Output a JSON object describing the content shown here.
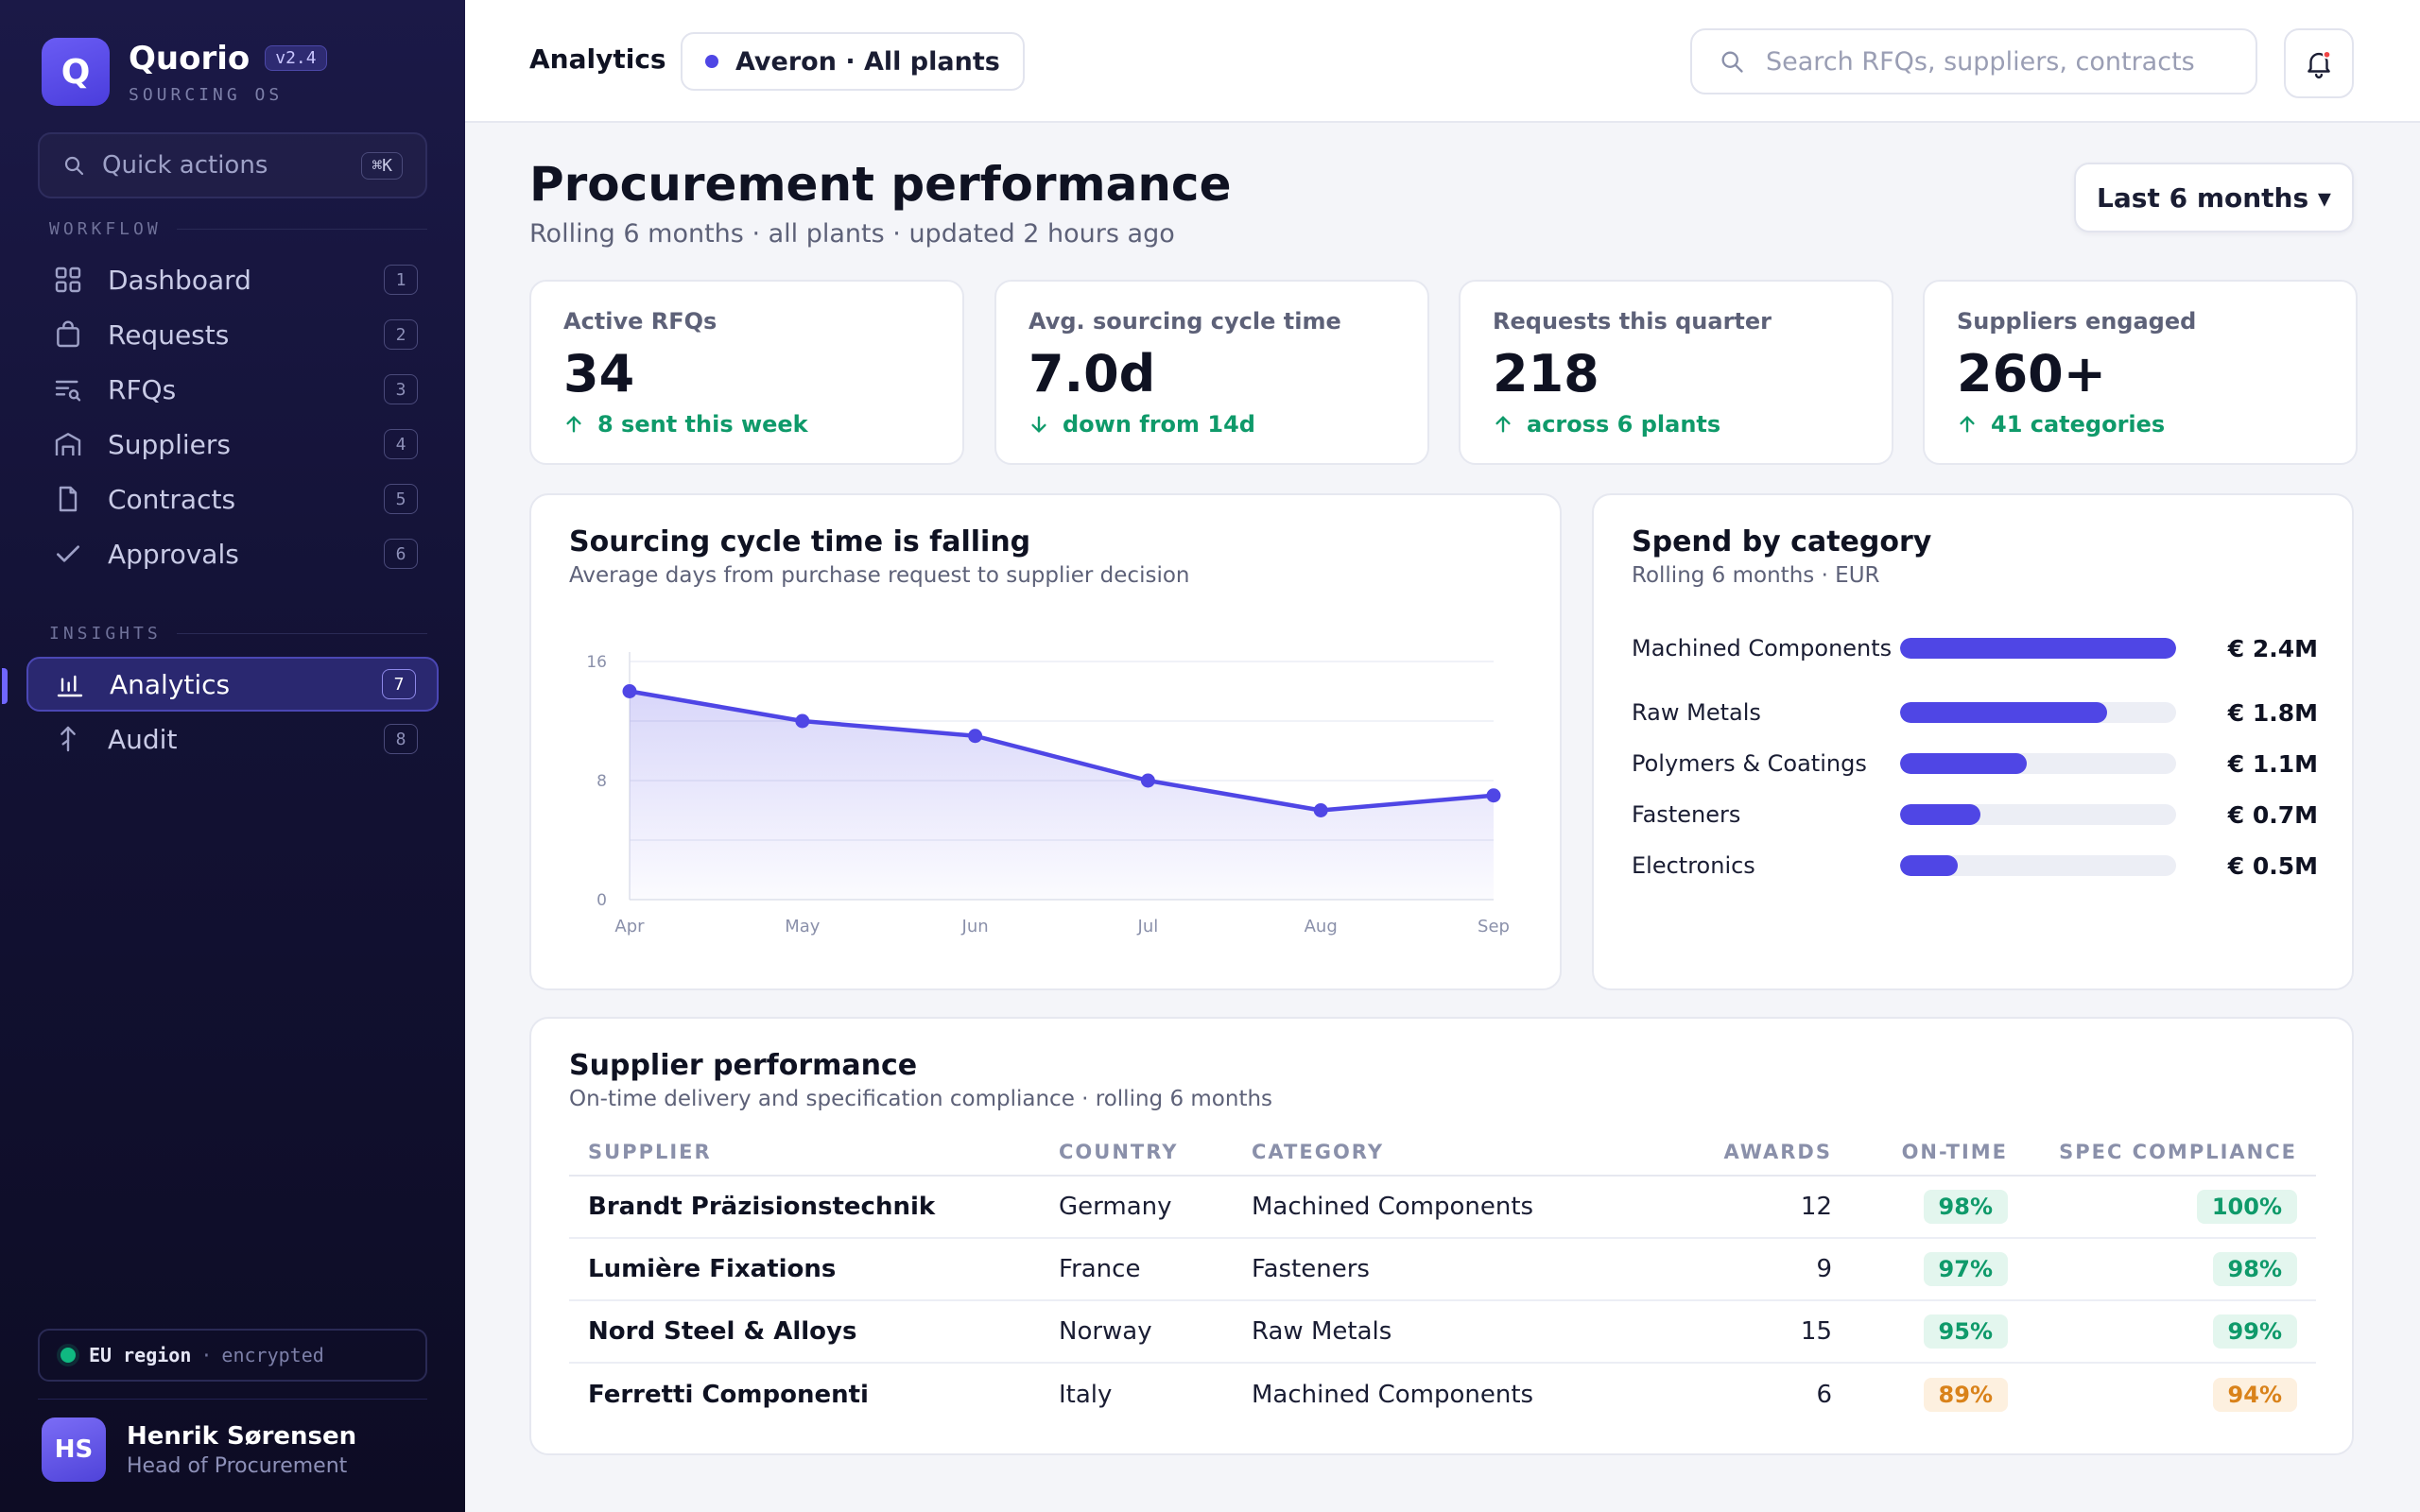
{
  "sidebar": {
    "brand": {
      "name": "Quorio",
      "version": "v2.4",
      "subtitle": "SOURCING OS",
      "logo_letter": "Q"
    },
    "quick_actions": {
      "label": "Quick actions",
      "shortcut": "⌘K"
    },
    "sections": {
      "workflow": "WORKFLOW",
      "insights": "INSIGHTS"
    },
    "workflow_items": [
      {
        "label": "Dashboard",
        "num": "1",
        "icon": "grid-icon"
      },
      {
        "label": "Requests",
        "num": "2",
        "icon": "bag-icon"
      },
      {
        "label": "RFQs",
        "num": "3",
        "icon": "list-search-icon"
      },
      {
        "label": "Suppliers",
        "num": "4",
        "icon": "warehouse-icon"
      },
      {
        "label": "Contracts",
        "num": "5",
        "icon": "document-icon"
      },
      {
        "label": "Approvals",
        "num": "6",
        "icon": "check-icon"
      }
    ],
    "insights_items": [
      {
        "label": "Analytics",
        "num": "7",
        "icon": "bar-chart-icon",
        "active": true
      },
      {
        "label": "Audit",
        "num": "8",
        "icon": "branch-icon"
      }
    ],
    "region": {
      "strong": "EU region",
      "sep": "·",
      "light": "encrypted"
    },
    "user": {
      "initials": "HS",
      "name": "Henrik Sørensen",
      "role": "Head of Procurement"
    }
  },
  "topbar": {
    "crumb": "Analytics",
    "scope": "Averon · All plants",
    "search_placeholder": "Search RFQs, suppliers, contracts"
  },
  "page": {
    "title": "Procurement performance",
    "subtitle": "Rolling 6 months · all plants · updated 2 hours ago",
    "range": "Last 6 months ▾"
  },
  "kpis": [
    {
      "label": "Active RFQs",
      "value": "34",
      "delta": "8 sent this week",
      "direction": "up"
    },
    {
      "label": "Avg. sourcing cycle time",
      "value": "7.0d",
      "delta": "down from 14d",
      "direction": "down"
    },
    {
      "label": "Requests this quarter",
      "value": "218",
      "delta": "across 6 plants",
      "direction": "up"
    },
    {
      "label": "Suppliers engaged",
      "value": "260+",
      "delta": "41 categories",
      "direction": "up"
    }
  ],
  "cycle_chart": {
    "title": "Sourcing cycle time is falling",
    "subtitle": "Average days from purchase request to supplier decision"
  },
  "chart_data": {
    "type": "line",
    "title": "Sourcing cycle time is falling",
    "subtitle": "Average days from purchase request to supplier decision",
    "categories": [
      "Apr",
      "May",
      "Jun",
      "Jul",
      "Aug",
      "Sep"
    ],
    "values": [
      14,
      12,
      11,
      8,
      6,
      7
    ],
    "yticks": [
      "0",
      "8",
      "16"
    ],
    "ylim": [
      0,
      16
    ],
    "grid": true,
    "color": "#4f46e5"
  },
  "spend": {
    "title": "Spend by category",
    "subtitle": "Rolling 6 months · EUR",
    "max": 2.4,
    "items": [
      {
        "label": "Machined Components",
        "value": 2.4,
        "display": "€ 2.4M"
      },
      {
        "label": "Raw Metals",
        "value": 1.8,
        "display": "€ 1.8M"
      },
      {
        "label": "Polymers & Coatings",
        "value": 1.1,
        "display": "€ 1.1M"
      },
      {
        "label": "Fasteners",
        "value": 0.7,
        "display": "€ 0.7M"
      },
      {
        "label": "Electronics",
        "value": 0.5,
        "display": "€ 0.5M"
      }
    ]
  },
  "suppliers": {
    "title": "Supplier performance",
    "subtitle": "On-time delivery and specification compliance · rolling 6 months",
    "columns": [
      "SUPPLIER",
      "COUNTRY",
      "CATEGORY",
      "AWARDS",
      "ON-TIME",
      "SPEC COMPLIANCE"
    ],
    "rows": [
      {
        "supplier": "Brandt Präzisionstechnik",
        "country": "Germany",
        "category": "Machined Components",
        "awards": "12",
        "on_time": "98%",
        "on_time_status": "good",
        "spec": "100%",
        "spec_status": "good"
      },
      {
        "supplier": "Lumière Fixations",
        "country": "France",
        "category": "Fasteners",
        "awards": "9",
        "on_time": "97%",
        "on_time_status": "good",
        "spec": "98%",
        "spec_status": "good"
      },
      {
        "supplier": "Nord Steel & Alloys",
        "country": "Norway",
        "category": "Raw Metals",
        "awards": "15",
        "on_time": "95%",
        "on_time_status": "good",
        "spec": "99%",
        "spec_status": "good"
      },
      {
        "supplier": "Ferretti Componenti",
        "country": "Italy",
        "category": "Machined Components",
        "awards": "6",
        "on_time": "89%",
        "on_time_status": "warn",
        "spec": "94%",
        "spec_status": "warn"
      }
    ]
  },
  "colors": {
    "accent": "#4f46e5",
    "good": "#0f9a6a",
    "warn": "#d9821a",
    "sidebar": "#131235"
  }
}
